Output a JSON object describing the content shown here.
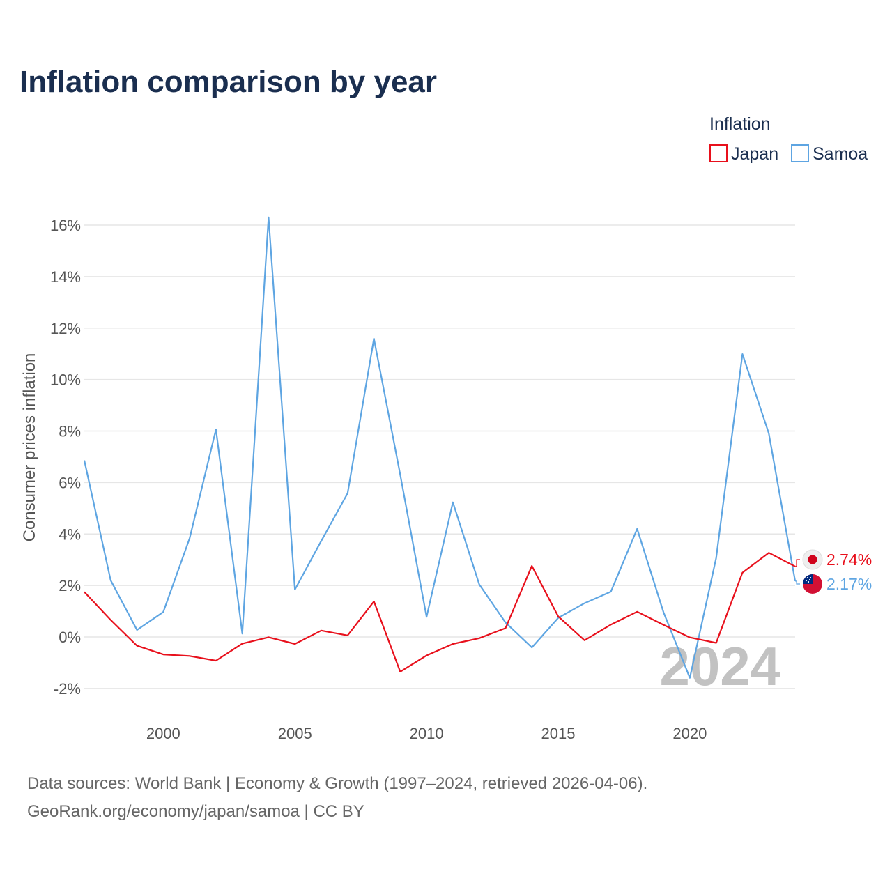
{
  "chart_data": {
    "type": "line",
    "title": "Inflation comparison by year",
    "legend_title": "Inflation",
    "legend_position": "top-right",
    "ylabel": "Consumer prices inflation",
    "xlabel": "",
    "x": [
      1997,
      1998,
      1999,
      2000,
      2001,
      2002,
      2003,
      2004,
      2005,
      2006,
      2007,
      2008,
      2009,
      2010,
      2011,
      2012,
      2013,
      2014,
      2015,
      2016,
      2017,
      2018,
      2019,
      2020,
      2021,
      2022,
      2023,
      2024
    ],
    "xlim": [
      1997,
      2024
    ],
    "ylim": [
      -3,
      16.5
    ],
    "y_ticks": [
      -2,
      0,
      2,
      4,
      6,
      8,
      10,
      12,
      14,
      16
    ],
    "y_tick_labels": [
      "-2%",
      "0%",
      "2%",
      "4%",
      "6%",
      "8%",
      "10%",
      "12%",
      "14%",
      "16%"
    ],
    "x_ticks": [
      2000,
      2005,
      2010,
      2015,
      2020
    ],
    "x_tick_labels": [
      "2000",
      "2005",
      "2010",
      "2015",
      "2020"
    ],
    "grid": true,
    "series": [
      {
        "name": "Japan",
        "color": "#e8101c",
        "values": [
          1.75,
          0.66,
          -0.34,
          -0.68,
          -0.74,
          -0.92,
          -0.26,
          -0.01,
          -0.27,
          0.25,
          0.06,
          1.38,
          -1.35,
          -0.72,
          -0.27,
          -0.05,
          0.34,
          2.76,
          0.8,
          -0.13,
          0.48,
          0.98,
          0.47,
          -0.02,
          -0.23,
          2.5,
          3.27,
          2.74
        ],
        "end_label": "2.74%",
        "flag": "japan-flag"
      },
      {
        "name": "Samoa",
        "color": "#5ea5e2",
        "values": [
          6.86,
          2.2,
          0.27,
          0.97,
          3.83,
          8.06,
          0.13,
          16.3,
          1.84,
          3.73,
          5.58,
          11.59,
          6.31,
          0.78,
          5.23,
          2.04,
          0.56,
          -0.41,
          0.74,
          1.31,
          1.76,
          4.2,
          0.96,
          -1.59,
          3.07,
          10.99,
          7.91,
          2.17
        ],
        "end_label": "2.17%",
        "flag": "samoa-flag"
      }
    ],
    "watermark": "2024",
    "source_line_1": "Data sources: World Bank | Economy & Growth (1997–2024, retrieved 2026-04-06).",
    "source_line_2": "GeoRank.org/economy/japan/samoa | CC BY"
  }
}
